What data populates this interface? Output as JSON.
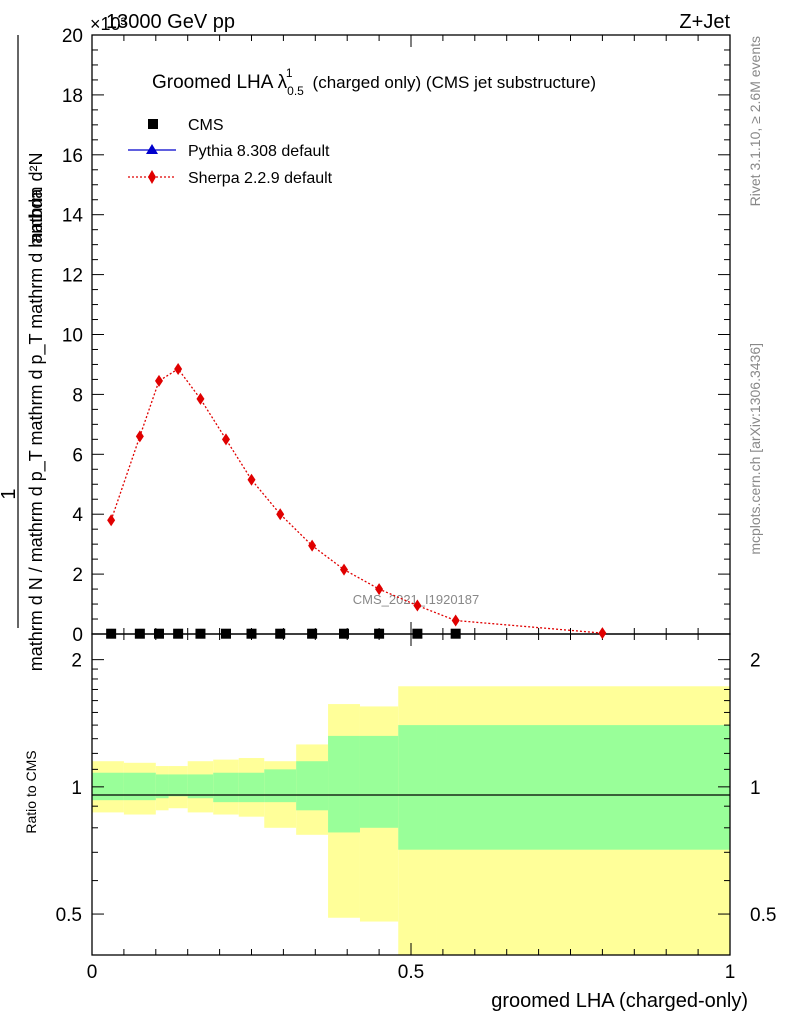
{
  "header": {
    "energy": "13000 GeV pp",
    "process": "Z+Jet",
    "multiplier": "×10³"
  },
  "side": {
    "rivet": "Rivet 3.1.10, ≥ 2.6M events",
    "mcplots": "mcplots.cern.ch [arXiv:1306.3436]"
  },
  "watermark": "CMS_2021_I1920187",
  "chart_data": [
    {
      "type": "line",
      "title": "Groomed LHA λ¹₀.₅ (charged only) (CMS jet substructure)",
      "title_main": "Groomed LHA λ",
      "title_sup": "1",
      "title_sub": "0.5",
      "title_rest": "(charged only) (CMS jet substructure)",
      "ylabel_top": "1",
      "ylabel_num": "mathrm d²N",
      "ylabel_den": "mathrm d N / mathrm d p_T mathrm d p_T mathrm d lambda",
      "xlim": [
        0,
        1
      ],
      "ylim": [
        0,
        20
      ],
      "yticks": [
        0,
        2,
        4,
        6,
        8,
        10,
        12,
        14,
        16,
        18,
        20
      ],
      "ytick_labels": [
        "0",
        "2",
        "4",
        "6",
        "8",
        "10",
        "12",
        "14",
        "16",
        "18",
        "20"
      ],
      "y_multiplier": "×10³",
      "legend_position": "top-left",
      "series": [
        {
          "name": "CMS",
          "marker": "square",
          "color": "#000000",
          "x": [
            0.03,
            0.075,
            0.105,
            0.135,
            0.17,
            0.21,
            0.25,
            0.295,
            0.345,
            0.395,
            0.45,
            0.51,
            0.57
          ],
          "y": [
            0.01,
            0.01,
            0.01,
            0.01,
            0.01,
            0.01,
            0.01,
            0.01,
            0.01,
            0.01,
            0.01,
            0.01,
            0.01
          ]
        },
        {
          "name": "Pythia 8.308 default",
          "marker": "triangle",
          "color": "#0000cc",
          "x": [
            0.03,
            0.075,
            0.105,
            0.135,
            0.17,
            0.21,
            0.25,
            0.295,
            0.345,
            0.395,
            0.45,
            0.51,
            0.57
          ],
          "y": [
            0.01,
            0.01,
            0.01,
            0.01,
            0.01,
            0.01,
            0.01,
            0.01,
            0.01,
            0.01,
            0.01,
            0.01,
            0.01
          ]
        },
        {
          "name": "Sherpa 2.2.9 default",
          "marker": "diamond",
          "color": "#e00000",
          "x": [
            0.03,
            0.075,
            0.105,
            0.135,
            0.17,
            0.21,
            0.25,
            0.295,
            0.345,
            0.395,
            0.45,
            0.51,
            0.57,
            0.8
          ],
          "y": [
            3.8,
            6.6,
            8.45,
            8.85,
            7.85,
            6.5,
            5.15,
            4.0,
            2.95,
            2.15,
            1.5,
            0.95,
            0.45,
            0.03
          ]
        }
      ]
    },
    {
      "type": "area",
      "ylabel": "Ratio to CMS",
      "xlabel": "groomed LHA (charged-only)",
      "xlim": [
        0,
        1
      ],
      "ylim": [
        0.4,
        2.3
      ],
      "y_scale": "log",
      "xticks": [
        0,
        0.5,
        1
      ],
      "xtick_labels": [
        "0",
        "0.5",
        "1"
      ],
      "yticks": [
        0.5,
        1,
        2
      ],
      "ytick_labels": [
        "0.5",
        "1",
        "2"
      ],
      "bin_edges": [
        0,
        0.05,
        0.1,
        0.12,
        0.15,
        0.19,
        0.23,
        0.27,
        0.32,
        0.37,
        0.42,
        0.48,
        0.54,
        1.0
      ],
      "bands": [
        {
          "name": "stat",
          "color": "#99ff99",
          "low": [
            0.93,
            0.93,
            0.94,
            0.95,
            0.94,
            0.92,
            0.92,
            0.92,
            0.88,
            0.78,
            0.8,
            0.71,
            0.71
          ],
          "high": [
            1.08,
            1.08,
            1.07,
            1.07,
            1.07,
            1.08,
            1.08,
            1.1,
            1.15,
            1.32,
            1.32,
            1.4,
            1.4
          ]
        },
        {
          "name": "total",
          "color": "#ffff99",
          "low": [
            0.87,
            0.86,
            0.88,
            0.89,
            0.87,
            0.86,
            0.85,
            0.8,
            0.77,
            0.49,
            0.48,
            0.33,
            0.33
          ],
          "high": [
            1.15,
            1.14,
            1.12,
            1.12,
            1.15,
            1.16,
            1.17,
            1.15,
            1.26,
            1.57,
            1.55,
            1.73,
            1.73
          ]
        }
      ],
      "reference_line": 1
    }
  ]
}
